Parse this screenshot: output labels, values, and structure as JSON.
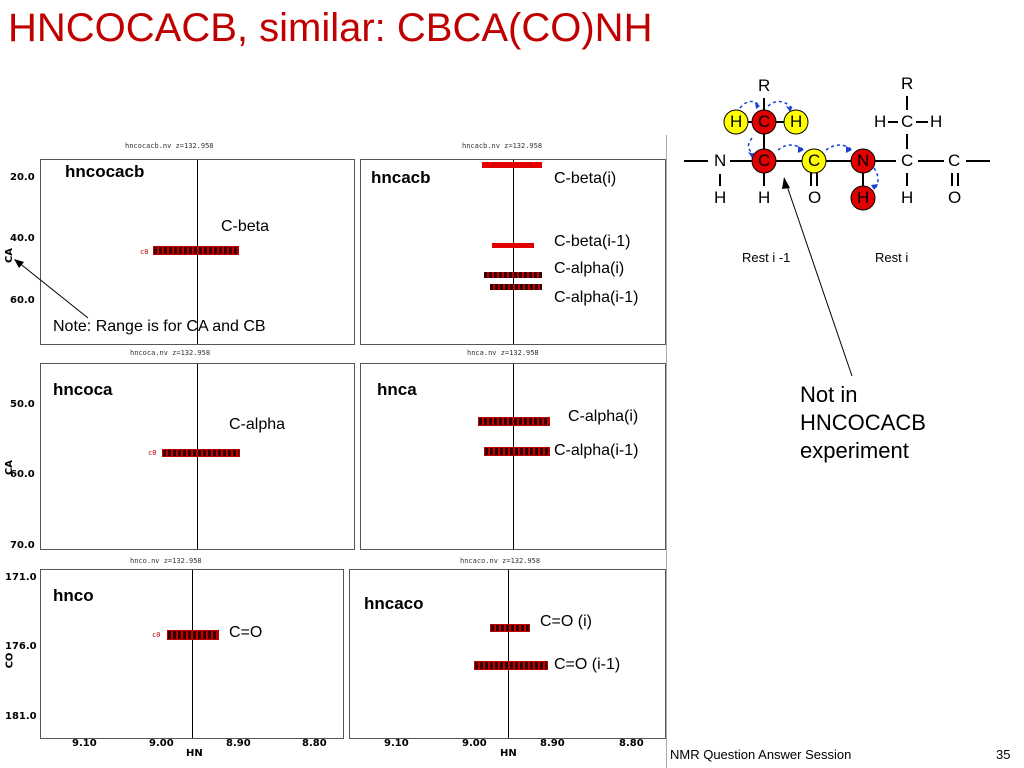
{
  "slide": {
    "title": "HNCOCACB, similar: CBCA(CO)NH",
    "footer_text": "NMR Question Answer Session",
    "page_number": "35",
    "colors": {
      "title": "#c00000",
      "peak": "#c00000",
      "atom_red": "#e00000",
      "atom_yellow": "#ffff00",
      "arrow_blue": "#1a3fd0"
    }
  },
  "spectra": {
    "panels": {
      "hncocacb": {
        "file": "hncocacb.nv z=132.958",
        "name": "hncocacb",
        "labels": [
          "C-beta"
        ],
        "note": "Note: Range is for CA and CB"
      },
      "hncacb": {
        "file": "hncacb.nv z=132.958",
        "name": "hncacb",
        "labels": [
          "C-beta(i)",
          "C-beta(i-1)",
          "C-alpha(i)",
          "C-alpha(i-1)"
        ]
      },
      "hncoca": {
        "file": "hncoca.nv z=132.958",
        "name": "hncoca",
        "labels": [
          "C-alpha"
        ]
      },
      "hnca": {
        "file": "hnca.nv z=132.958",
        "name": "hnca",
        "labels": [
          "C-alpha(i)",
          "C-alpha(i-1)"
        ]
      },
      "hnco": {
        "file": "hnco.nv z=132.958",
        "name": "hnco",
        "labels": [
          "C=O"
        ]
      },
      "hncaco": {
        "file": "hncaco.nv z=132.958",
        "name": "hncaco",
        "labels": [
          "C=O (i)",
          "C=O (i-1)"
        ]
      }
    },
    "axes": {
      "ca_label": "CA",
      "co_label": "CO",
      "hn_label": "HN",
      "ca_ticks_top": [
        "20.0",
        "40.0",
        "60.0"
      ],
      "ca_ticks_mid": [
        "50.0",
        "60.0",
        "70.0"
      ],
      "co_ticks": [
        "171.0",
        "176.0",
        "181.0"
      ],
      "hn_ticks": [
        "9.10",
        "9.00",
        "8.90",
        "8.80"
      ]
    },
    "peak_tag": "c0"
  },
  "molecule": {
    "residue_prev_label": "Rest i -1",
    "residue_label": "Rest i",
    "atoms": {
      "R": "R",
      "H": "H",
      "C": "C",
      "N": "N",
      "O": "O"
    },
    "bonds": {
      "single_h": "–",
      "single_v": "|",
      "double": "‖"
    }
  },
  "annotation": {
    "line1": "Not in",
    "line2": "HNCOCACB",
    "line3": "experiment"
  }
}
